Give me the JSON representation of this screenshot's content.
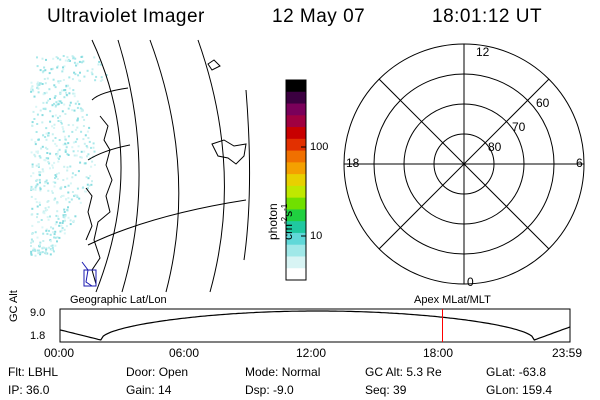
{
  "header": {
    "instrument": "Ultraviolet Imager",
    "date": "12 May 07",
    "time": "18:01:12 UT"
  },
  "colorbar": {
    "title": "photon cm",
    "title_sup1": "-2",
    "title_mid": "s",
    "title_sup2": "-1",
    "ticks": [
      "100",
      "10"
    ],
    "colors": [
      "#000000",
      "#3b0040",
      "#7a005a",
      "#a00040",
      "#c80000",
      "#e23000",
      "#f07000",
      "#f4a000",
      "#e8d000",
      "#c0e800",
      "#70e000",
      "#20d040",
      "#20c8a0",
      "#60d8d8",
      "#a0e8e8",
      "#d8f4f4",
      "#ffffff"
    ]
  },
  "map": {
    "projection_label": "Geographic Lat/Lon"
  },
  "polar": {
    "projection_label": "Apex MLat/MLT",
    "mlt_labels": {
      "top": "12",
      "left": "18",
      "right": "6",
      "bottom": "0"
    },
    "lat_labels": [
      "60",
      "70",
      "80"
    ]
  },
  "altitude_plot": {
    "ylabel": "GC Alt",
    "y_ticks": [
      "9.0",
      "1.8"
    ],
    "x_ticks": [
      "00:00",
      "06:00",
      "12:00",
      "18:00",
      "23:59"
    ],
    "current_time_fraction": 0.75,
    "current_marker_color": "#ff0000"
  },
  "info": {
    "row1": [
      {
        "label": "Flt:",
        "value": "LBHL"
      },
      {
        "label": "Door:",
        "value": "Open"
      },
      {
        "label": "Mode:",
        "value": "Normal"
      },
      {
        "label": "GC Alt:",
        "value": "5.3 Re"
      },
      {
        "label": "GLat:",
        "value": "-63.8"
      }
    ],
    "row2": [
      {
        "label": "IP:",
        "value": "36.0"
      },
      {
        "label": "Gain:",
        "value": "14"
      },
      {
        "label": "Dsp:",
        "value": "-9.0"
      },
      {
        "label": "Seq:",
        "value": "39"
      },
      {
        "label": "GLon:",
        "value": "159.4"
      }
    ]
  }
}
